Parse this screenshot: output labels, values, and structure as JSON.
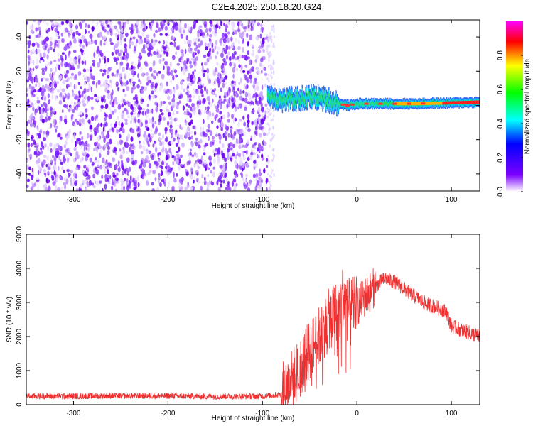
{
  "title": "C2E4.2025.250.18.20.G24",
  "chart_data": [
    {
      "type": "heatmap",
      "xlabel": "Height of straight line (km)",
      "ylabel": "Frequency (Hz)",
      "xlim": [
        -350,
        130
      ],
      "ylim": [
        -50,
        50
      ],
      "xticks": [
        -300,
        -200,
        -100,
        0,
        100
      ],
      "yticks": [
        -40,
        -20,
        0,
        20,
        40
      ],
      "grid": false,
      "noise_region": {
        "x": [
          -350,
          -95
        ],
        "description": "uniform purple noise"
      },
      "signal_track": [
        {
          "x": -95,
          "y": 6
        },
        {
          "x": -80,
          "y": 3
        },
        {
          "x": -60,
          "y": 4
        },
        {
          "x": -45,
          "y": 5
        },
        {
          "x": -30,
          "y": 3
        },
        {
          "x": -20,
          "y": 1
        },
        {
          "x": -10,
          "y": 0
        },
        {
          "x": 0,
          "y": 1
        },
        {
          "x": 20,
          "y": 1
        },
        {
          "x": 60,
          "y": 1
        },
        {
          "x": 100,
          "y": 1.5
        },
        {
          "x": 130,
          "y": 2
        }
      ],
      "colorbar": {
        "label": "Normalized spectral amplitude",
        "range": [
          0,
          1
        ],
        "ticks": [
          0.0,
          0.2,
          0.4,
          0.6,
          0.8
        ],
        "colors": [
          "#ffffff",
          "#7b00ff",
          "#0000ff",
          "#00ffff",
          "#00ff00",
          "#ffff00",
          "#ff0000",
          "#ff00ff"
        ]
      }
    },
    {
      "type": "line",
      "xlabel": "Height of straight line (km)",
      "ylabel": "SNR (10 * v/v)",
      "xlim": [
        -350,
        130
      ],
      "ylim": [
        0,
        5000
      ],
      "xticks": [
        -300,
        -200,
        -100,
        0,
        100
      ],
      "yticks": [
        0,
        1000,
        2000,
        3000,
        4000,
        5000
      ],
      "grid": false,
      "series": [
        {
          "color": "#ee3030",
          "x": [
            -350,
            -300,
            -250,
            -200,
            -150,
            -100,
            -80,
            -70,
            -60,
            -50,
            -40,
            -30,
            -20,
            -15,
            -10,
            0,
            10,
            20,
            30,
            40,
            50,
            60,
            70,
            80,
            90,
            95,
            100,
            110,
            120,
            130
          ],
          "y": [
            250,
            250,
            260,
            260,
            240,
            250,
            300,
            700,
            1100,
            1600,
            2000,
            2500,
            2800,
            3200,
            2800,
            2900,
            3200,
            3500,
            3700,
            3600,
            3400,
            3200,
            3000,
            2900,
            2800,
            2700,
            2300,
            2200,
            2100,
            2000
          ]
        }
      ]
    }
  ]
}
